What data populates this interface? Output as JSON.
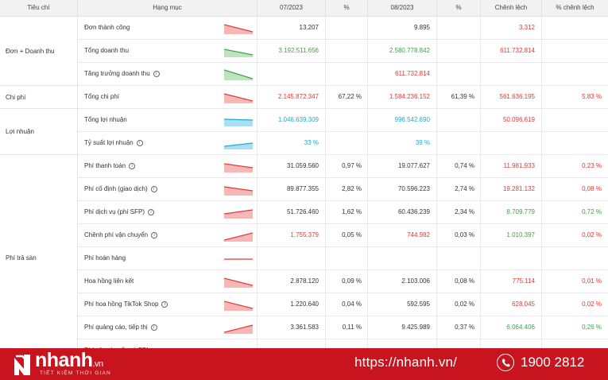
{
  "header": {
    "criteria": "Tiêu chí",
    "category": "Hạng mục",
    "period1": "07/2023",
    "pct1": "%",
    "period2": "08/2023",
    "pct2": "%",
    "diff": "Chênh lệch",
    "diff_pct": "% chênh lệch"
  },
  "groups": [
    {
      "label": "Đơn + Doanh thu"
    },
    {
      "label": "Chi phí"
    },
    {
      "label": "Lợi nhuận"
    },
    {
      "label": "Phí trả sàn"
    }
  ],
  "rows": [
    {
      "name": "Đơn thành công",
      "info": false,
      "spark": "down-red",
      "v1": "13.207",
      "v1c": "dark",
      "p1": "",
      "v2": "9.895",
      "v2c": "dark",
      "p2": "",
      "d1": "3.312",
      "d1c": "red",
      "d2": "",
      "d2c": "dark"
    },
    {
      "name": "Tổng doanh thu",
      "info": false,
      "spark": "down-green",
      "v1": "3.192.511.656",
      "v1c": "green",
      "p1": "",
      "v2": "2.580.778.842",
      "v2c": "green",
      "p2": "",
      "d1": "611.732.814",
      "d1c": "red",
      "d2": "",
      "d2c": "dark"
    },
    {
      "name": "Tăng trưởng doanh thu",
      "info": true,
      "spark": "down-green2",
      "v1": "",
      "v1c": "dark",
      "p1": "",
      "v2": "611.732.814",
      "v2c": "red",
      "p2": "",
      "d1": "",
      "d1c": "dark",
      "d2": "",
      "d2c": "dark"
    },
    {
      "name": "Tổng chi phí",
      "info": false,
      "spark": "down-red",
      "v1": "2.145.872.347",
      "v1c": "red",
      "p1": "67,22 %",
      "v2": "1.584.236.152",
      "v2c": "red",
      "p2": "61,39 %",
      "d1": "561.636.195",
      "d1c": "red",
      "d2": "5,83 %",
      "d2c": "red"
    },
    {
      "name": "Tổng lợi nhuận",
      "info": false,
      "spark": "flat-blue",
      "v1": "1.046.639.309",
      "v1c": "blue",
      "p1": "",
      "v2": "996.542.690",
      "v2c": "blue",
      "p2": "",
      "d1": "50.096.619",
      "d1c": "red",
      "d2": "",
      "d2c": "dark"
    },
    {
      "name": "Tỷ suất lợi nhuận",
      "info": true,
      "spark": "up-blue",
      "v1": "33 %",
      "v1c": "blue",
      "p1": "",
      "v2": "39 %",
      "v2c": "blue",
      "p2": "",
      "d1": "",
      "d1c": "dark",
      "d2": "",
      "d2c": "dark"
    },
    {
      "name": "Phí thanh toán",
      "info": true,
      "spark": "down-red-s",
      "v1": "31.059.560",
      "v1c": "dark",
      "p1": "0,97 %",
      "v2": "19.077.627",
      "v2c": "dark",
      "p2": "0,74 %",
      "d1": "11.981.933",
      "d1c": "red",
      "d2": "0,23 %",
      "d2c": "red"
    },
    {
      "name": "Phí cố định (giao dịch)",
      "info": true,
      "spark": "down-red-s",
      "v1": "89.877.355",
      "v1c": "dark",
      "p1": "2,82 %",
      "v2": "70.596.223",
      "v2c": "dark",
      "p2": "2,74 %",
      "d1": "19.281.132",
      "d1c": "red",
      "d2": "0,08 %",
      "d2c": "red"
    },
    {
      "name": "Phí dịch vụ (phí SFP)",
      "info": true,
      "spark": "up-red-s",
      "v1": "51.726.460",
      "v1c": "dark",
      "p1": "1,62 %",
      "v2": "60.436.239",
      "v2c": "dark",
      "p2": "2,34 %",
      "d1": "8.709.779",
      "d1c": "green",
      "d2": "0,72 %",
      "d2c": "green"
    },
    {
      "name": "Chênh phí vận chuyển",
      "info": true,
      "spark": "up-red",
      "v1": "1.755.379",
      "v1c": "red",
      "p1": "0,05 %",
      "v2": "744.982",
      "v2c": "red",
      "p2": "0,03 %",
      "d1": "1.010.397",
      "d1c": "green",
      "d2": "0,02 %",
      "d2c": "red"
    },
    {
      "name": "Phí hoàn hàng",
      "info": false,
      "spark": "flat-red",
      "v1": "",
      "v1c": "dark",
      "p1": "",
      "v2": "",
      "v2c": "dark",
      "p2": "",
      "d1": "",
      "d1c": "dark",
      "d2": "",
      "d2c": "dark"
    },
    {
      "name": "Hoa hồng liên kết",
      "info": false,
      "spark": "down-red",
      "v1": "2.878.120",
      "v1c": "dark",
      "p1": "0,09 %",
      "v2": "2.103.006",
      "v2c": "dark",
      "p2": "0,08 %",
      "d1": "775.114",
      "d1c": "red",
      "d2": "0,01 %",
      "d2c": "red"
    },
    {
      "name": "Phí hoa hồng TikTok Shop",
      "info": true,
      "spark": "down-red",
      "v1": "1.220.640",
      "v1c": "dark",
      "p1": "0,04 %",
      "v2": "592.595",
      "v2c": "dark",
      "p2": "0,02 %",
      "d1": "628.045",
      "d1c": "red",
      "d2": "0,02 %",
      "d2c": "red"
    },
    {
      "name": "Phí quảng cáo, tiếp thị",
      "info": true,
      "spark": "up-red",
      "v1": "3.361.583",
      "v1c": "dark",
      "p1": "0,11 %",
      "v2": "9.425.989",
      "v2c": "dark",
      "p2": "0,37 %",
      "d1": "6.064.406",
      "d1c": "green",
      "d2": "0,26 %",
      "d2c": "green"
    },
    {
      "name": "Phí vận chuyển và FBI",
      "info": false,
      "spark": "none",
      "v1": "",
      "v1c": "dark",
      "p1": "",
      "v2": "",
      "v2c": "dark",
      "p2": "",
      "d1": "",
      "d1c": "dark",
      "d2": "",
      "d2c": "dark"
    }
  ],
  "footer": {
    "brand": "nhanh",
    "brand_suffix": ".vn",
    "tagline": "TIẾT KIỆM THỜI GIAN",
    "url": "https://nhanh.vn/",
    "phone": "1900 2812",
    "color": "#c8141e"
  }
}
